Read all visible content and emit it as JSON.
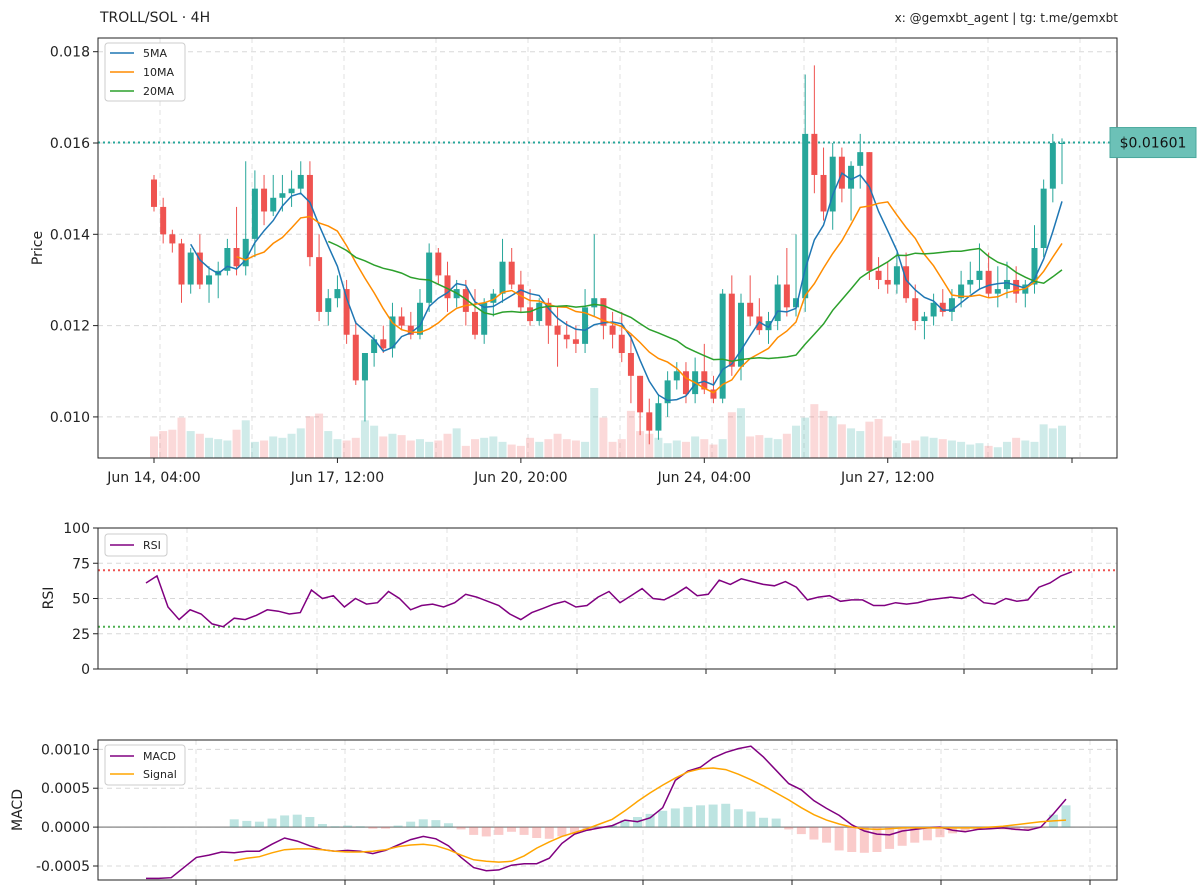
{
  "header": {
    "title": "TROLL/SOL · 4H",
    "credits": "x: @gemxbt_agent | tg: t.me/gemxbt"
  },
  "colors": {
    "up": "#26a69a",
    "down": "#ef5350",
    "ma5": "#1f77b4",
    "ma10": "#ff8c00",
    "ma20": "#2ca02c",
    "rsi": "#800080",
    "macd": "#800080",
    "signal": "#ffa500",
    "price_tag_bg": "#6cc1b7"
  },
  "chart_data": [
    {
      "type": "candlestick",
      "ylabel": "Price",
      "ylim": [
        0.0091,
        0.0183
      ],
      "yticks": [
        "0.010",
        "0.012",
        "0.014",
        "0.016",
        "0.018"
      ],
      "ytick_values": [
        0.01,
        0.012,
        0.014,
        0.016,
        0.018
      ],
      "xtick_labels": [
        "Jun 14, 04:00",
        "Jun 17, 12:00",
        "Jun 20, 20:00",
        "Jun 24, 04:00",
        "Jun 27, 12:00"
      ],
      "xtick_index": [
        0,
        20,
        40,
        60,
        80
      ],
      "n_candles": 100,
      "last_price_label": "$0.01601",
      "last_price": 0.01601,
      "legend": [
        "5MA",
        "10MA",
        "20MA"
      ],
      "grid": true,
      "ohlc": [
        [
          0.0152,
          0.0153,
          0.0145,
          0.0146
        ],
        [
          0.0146,
          0.0148,
          0.0138,
          0.014
        ],
        [
          0.014,
          0.0141,
          0.0136,
          0.0138
        ],
        [
          0.0138,
          0.0139,
          0.0125,
          0.0129
        ],
        [
          0.0129,
          0.0137,
          0.0127,
          0.0136
        ],
        [
          0.0136,
          0.014,
          0.0128,
          0.0129
        ],
        [
          0.0129,
          0.0133,
          0.0125,
          0.0131
        ],
        [
          0.0131,
          0.0134,
          0.0126,
          0.0132
        ],
        [
          0.0132,
          0.0139,
          0.0131,
          0.0137
        ],
        [
          0.0137,
          0.0146,
          0.0131,
          0.0133
        ],
        [
          0.0133,
          0.0156,
          0.0131,
          0.0139
        ],
        [
          0.0139,
          0.0154,
          0.0135,
          0.015
        ],
        [
          0.015,
          0.0153,
          0.0142,
          0.0145
        ],
        [
          0.0145,
          0.0153,
          0.0144,
          0.0148
        ],
        [
          0.0148,
          0.0153,
          0.0145,
          0.0149
        ],
        [
          0.0149,
          0.0154,
          0.0146,
          0.015
        ],
        [
          0.015,
          0.0156,
          0.0149,
          0.0153
        ],
        [
          0.0153,
          0.0156,
          0.0133,
          0.0135
        ],
        [
          0.0135,
          0.014,
          0.0121,
          0.0123
        ],
        [
          0.0123,
          0.0128,
          0.012,
          0.0126
        ],
        [
          0.0126,
          0.0131,
          0.0124,
          0.0128
        ],
        [
          0.0128,
          0.013,
          0.0116,
          0.0118
        ],
        [
          0.0118,
          0.0121,
          0.0107,
          0.0108
        ],
        [
          0.0108,
          0.0114,
          0.0099,
          0.0114
        ],
        [
          0.0114,
          0.0118,
          0.0111,
          0.0117
        ],
        [
          0.0117,
          0.012,
          0.0114,
          0.0115
        ],
        [
          0.0115,
          0.0125,
          0.0113,
          0.0122
        ],
        [
          0.0122,
          0.0124,
          0.0119,
          0.012
        ],
        [
          0.012,
          0.0123,
          0.0117,
          0.0118
        ],
        [
          0.0118,
          0.0128,
          0.0117,
          0.0125
        ],
        [
          0.0125,
          0.0138,
          0.0123,
          0.0136
        ],
        [
          0.0136,
          0.0137,
          0.0129,
          0.0131
        ],
        [
          0.0131,
          0.0134,
          0.0123,
          0.0126
        ],
        [
          0.0126,
          0.013,
          0.0124,
          0.0128
        ],
        [
          0.0128,
          0.013,
          0.012,
          0.0123
        ],
        [
          0.0123,
          0.0128,
          0.0117,
          0.0118
        ],
        [
          0.0118,
          0.0126,
          0.0116,
          0.0125
        ],
        [
          0.0125,
          0.0128,
          0.0122,
          0.0127
        ],
        [
          0.0127,
          0.0139,
          0.0125,
          0.0134
        ],
        [
          0.0134,
          0.0137,
          0.0128,
          0.0129
        ],
        [
          0.0129,
          0.0132,
          0.0123,
          0.0124
        ],
        [
          0.0124,
          0.0128,
          0.012,
          0.0121
        ],
        [
          0.0121,
          0.0126,
          0.012,
          0.0125
        ],
        [
          0.0125,
          0.0126,
          0.0116,
          0.012
        ],
        [
          0.012,
          0.0124,
          0.0111,
          0.0118
        ],
        [
          0.0118,
          0.0121,
          0.0115,
          0.0117
        ],
        [
          0.0117,
          0.012,
          0.0114,
          0.0116
        ],
        [
          0.0116,
          0.0128,
          0.0114,
          0.0124
        ],
        [
          0.0124,
          0.014,
          0.0122,
          0.0126
        ],
        [
          0.0126,
          0.0126,
          0.0117,
          0.012
        ],
        [
          0.012,
          0.0123,
          0.0115,
          0.0118
        ],
        [
          0.0118,
          0.0123,
          0.0112,
          0.0114
        ],
        [
          0.0114,
          0.0118,
          0.0103,
          0.0109
        ],
        [
          0.0109,
          0.0109,
          0.0096,
          0.0101
        ],
        [
          0.0101,
          0.0104,
          0.0094,
          0.0097
        ],
        [
          0.0097,
          0.0105,
          0.0095,
          0.0103
        ],
        [
          0.0103,
          0.011,
          0.01,
          0.0108
        ],
        [
          0.0108,
          0.0112,
          0.0106,
          0.011
        ],
        [
          0.011,
          0.0112,
          0.0103,
          0.0105
        ],
        [
          0.0105,
          0.0113,
          0.0103,
          0.011
        ],
        [
          0.011,
          0.0116,
          0.0105,
          0.0106
        ],
        [
          0.0106,
          0.0109,
          0.0103,
          0.0104
        ],
        [
          0.0104,
          0.0128,
          0.0103,
          0.0127
        ],
        [
          0.0127,
          0.0131,
          0.0109,
          0.0111
        ],
        [
          0.0111,
          0.0127,
          0.0108,
          0.0125
        ],
        [
          0.0125,
          0.0131,
          0.012,
          0.0122
        ],
        [
          0.0122,
          0.0126,
          0.0118,
          0.0119
        ],
        [
          0.0119,
          0.0123,
          0.0116,
          0.0121
        ],
        [
          0.0121,
          0.0131,
          0.0119,
          0.0129
        ],
        [
          0.0129,
          0.0137,
          0.0122,
          0.0124
        ],
        [
          0.0124,
          0.014,
          0.0122,
          0.0126
        ],
        [
          0.0126,
          0.0175,
          0.0123,
          0.0162
        ],
        [
          0.0162,
          0.0177,
          0.0149,
          0.0153
        ],
        [
          0.0153,
          0.0159,
          0.0143,
          0.0145
        ],
        [
          0.0145,
          0.016,
          0.0141,
          0.0157
        ],
        [
          0.0157,
          0.0159,
          0.0147,
          0.015
        ],
        [
          0.015,
          0.0156,
          0.0143,
          0.0155
        ],
        [
          0.0155,
          0.0162,
          0.015,
          0.0158
        ],
        [
          0.0158,
          0.0158,
          0.013,
          0.0132
        ],
        [
          0.0132,
          0.0135,
          0.0128,
          0.013
        ],
        [
          0.013,
          0.0134,
          0.0127,
          0.0129
        ],
        [
          0.0129,
          0.0136,
          0.0127,
          0.0133
        ],
        [
          0.0133,
          0.0136,
          0.0125,
          0.0126
        ],
        [
          0.0126,
          0.0129,
          0.0119,
          0.0121
        ],
        [
          0.0121,
          0.0123,
          0.0117,
          0.0122
        ],
        [
          0.0122,
          0.0127,
          0.012,
          0.0125
        ],
        [
          0.0125,
          0.0128,
          0.0122,
          0.0123
        ],
        [
          0.0123,
          0.0128,
          0.0121,
          0.0126
        ],
        [
          0.0126,
          0.0132,
          0.0124,
          0.0129
        ],
        [
          0.0129,
          0.0134,
          0.0127,
          0.013
        ],
        [
          0.013,
          0.0138,
          0.0128,
          0.0132
        ],
        [
          0.0132,
          0.0136,
          0.0126,
          0.0127
        ],
        [
          0.0127,
          0.0133,
          0.0124,
          0.0128
        ],
        [
          0.0128,
          0.0134,
          0.0126,
          0.013
        ],
        [
          0.013,
          0.0133,
          0.0125,
          0.0127
        ],
        [
          0.0127,
          0.013,
          0.0124,
          0.0129
        ],
        [
          0.0129,
          0.0142,
          0.0127,
          0.0137
        ],
        [
          0.0137,
          0.0152,
          0.0135,
          0.015
        ],
        [
          0.015,
          0.0162,
          0.0147,
          0.016
        ],
        [
          0.016,
          0.0161,
          0.0151,
          0.016
        ]
      ],
      "volume": [
        16,
        20,
        21,
        30,
        20,
        18,
        15,
        14,
        13,
        21,
        28,
        12,
        13,
        16,
        15,
        18,
        22,
        31,
        33,
        20,
        14,
        13,
        15,
        28,
        24,
        16,
        18,
        17,
        13,
        14,
        12,
        13,
        18,
        22,
        9,
        14,
        15,
        16,
        12,
        10,
        9,
        15,
        12,
        14,
        18,
        14,
        13,
        12,
        52,
        30,
        12,
        14,
        35,
        20,
        18,
        15,
        11,
        13,
        12,
        16,
        14,
        10,
        14,
        34,
        37,
        16,
        17,
        15,
        14,
        18,
        24,
        30,
        40,
        35,
        31,
        25,
        22,
        20,
        27,
        29,
        16,
        13,
        11,
        13,
        16,
        15,
        14,
        13,
        12,
        10,
        11,
        9,
        8,
        12,
        15,
        13,
        12,
        25,
        22,
        24
      ]
    },
    {
      "type": "line",
      "ylabel": "RSI",
      "ylim": [
        0,
        100
      ],
      "yticks": [
        "0",
        "25",
        "50",
        "75",
        "100"
      ],
      "ytick_values": [
        0,
        25,
        50,
        75,
        100
      ],
      "overbought": 70,
      "oversold": 30,
      "legend": [
        "RSI"
      ],
      "grid": true,
      "values": [
        61,
        66,
        44,
        35,
        42,
        39,
        32,
        30,
        36,
        35,
        38,
        42,
        41,
        39,
        40,
        56,
        50,
        52,
        44,
        50,
        46,
        47,
        55,
        50,
        42,
        45,
        46,
        44,
        47,
        53,
        51,
        48,
        45,
        39,
        35,
        40,
        43,
        46,
        48,
        44,
        45,
        51,
        55,
        47,
        52,
        57,
        50,
        49,
        53,
        58,
        52,
        53,
        63,
        60,
        64,
        62,
        60,
        59,
        62,
        58,
        49,
        51,
        52,
        48,
        49,
        49,
        45,
        45,
        47,
        46,
        47,
        49,
        50,
        51,
        50,
        53,
        47,
        46,
        50,
        48,
        49,
        58,
        61,
        66,
        69
      ]
    },
    {
      "type": "line",
      "ylabel": "MACD",
      "ylim": [
        -0.00068,
        0.00112
      ],
      "yticks": [
        "0.0010",
        "0.0005",
        "0.0000",
        "-0.0005"
      ],
      "ytick_values": [
        0.001,
        0.0005,
        0.0,
        -0.0005
      ],
      "legend": [
        "MACD",
        "Signal"
      ],
      "grid": true,
      "macd": [
        -0.00066,
        -0.00066,
        -0.00065,
        -0.00052,
        -0.00039,
        -0.00036,
        -0.00032,
        -0.00033,
        -0.00031,
        -0.00031,
        -0.00022,
        -0.00014,
        -0.00018,
        -0.00024,
        -0.00029,
        -0.00031,
        -0.0003,
        -0.00031,
        -0.00034,
        -0.0003,
        -0.00023,
        -0.00016,
        -0.00012,
        -0.00015,
        -0.00024,
        -0.00039,
        -0.00052,
        -0.00056,
        -0.00055,
        -0.00049,
        -0.00047,
        -0.00047,
        -0.0004,
        -0.00021,
        -9e-05,
        -4e-05,
        -1e-05,
        2e-05,
        9e-05,
        7e-05,
        0.00012,
        0.00025,
        0.0006,
        0.00072,
        0.00077,
        0.00089,
        0.00096,
        0.00101,
        0.00104,
        0.0009,
        0.00073,
        0.00056,
        0.00048,
        0.00034,
        0.00024,
        0.00015,
        3e-05,
        -5e-05,
        -9e-05,
        -0.0001,
        -5e-05,
        -3e-05,
        -1e-05,
        0.0,
        -4e-05,
        -6e-05,
        -3e-05,
        -2e-05,
        -1e-05,
        -3e-05,
        -4e-05,
        0.0,
        0.00017,
        0.00036
      ],
      "signal": [
        null,
        null,
        null,
        null,
        null,
        null,
        null,
        -0.00043,
        -0.0004,
        -0.00038,
        -0.00033,
        -0.00029,
        -0.00028,
        -0.00028,
        -0.00029,
        -0.00031,
        -0.00032,
        -0.00032,
        -0.00031,
        -0.00029,
        -0.00025,
        -0.00023,
        -0.00022,
        -0.00024,
        -0.00029,
        -0.00036,
        -0.00042,
        -0.00044,
        -0.00045,
        -0.00044,
        -0.00037,
        -0.00027,
        -0.00019,
        -0.00012,
        -7e-05,
        -2e-05,
        4e-05,
        0.0001,
        0.00021,
        0.00033,
        0.00044,
        0.00054,
        0.00063,
        0.00071,
        0.00075,
        0.00076,
        0.00074,
        0.00068,
        0.00061,
        0.00053,
        0.00044,
        0.00035,
        0.00025,
        0.00016,
        9e-05,
        4e-05,
        0.0,
        -2e-05,
        -3e-05,
        -2e-05,
        -1e-05,
        -1e-05,
        -1e-05,
        -1e-05,
        -1e-05,
        -1e-05,
        -1e-05,
        0.0,
        1e-05,
        3e-05,
        5e-05,
        7e-05,
        8e-05,
        9e-05
      ],
      "histogram": [
        null,
        null,
        null,
        null,
        null,
        null,
        null,
        0.0001,
        8e-05,
        7e-05,
        0.00011,
        0.00015,
        0.00016,
        0.00013,
        4e-05,
        1e-05,
        2e-05,
        1e-05,
        -2e-05,
        -2e-05,
        2e-05,
        7e-05,
        0.0001,
        9e-05,
        5e-05,
        -3e-05,
        -0.0001,
        -0.00012,
        -0.0001,
        -6e-05,
        -0.0001,
        -0.00014,
        -0.00015,
        -0.00012,
        -8e-05,
        -5e-05,
        -1e-05,
        2e-05,
        9e-05,
        0.00013,
        0.00017,
        0.00021,
        0.00024,
        0.00026,
        0.00028,
        0.00029,
        0.0003,
        0.00023,
        0.0002,
        0.00012,
        0.00011,
        -3e-05,
        -9e-05,
        -0.00016,
        -0.0002,
        -0.0003,
        -0.00032,
        -0.00033,
        -0.00032,
        -0.00028,
        -0.00024,
        -0.0002,
        -0.00017,
        -0.00013,
        -8e-05,
        -5e-05,
        -3e-05,
        -2e-05,
        -3e-05,
        -4e-05,
        -4e-05,
        -1e-05,
        0.00016,
        0.00028
      ]
    }
  ]
}
